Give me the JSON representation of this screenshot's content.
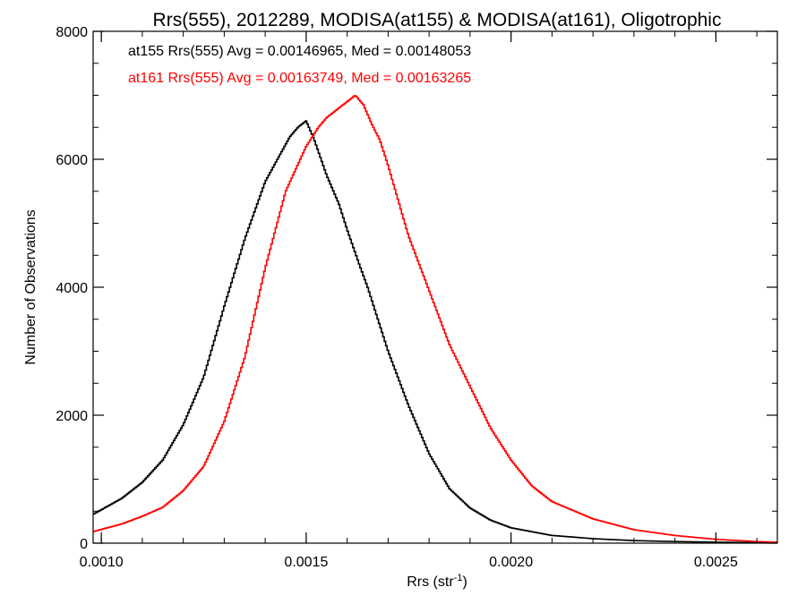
{
  "chart_data": {
    "type": "line",
    "title": "Rrs(555), 2012289, MODISA(at155) & MODISA(at161), Oligotrophic",
    "xlabel": "Rrs (str",
    "xlabel_sup": "-1",
    "xlabel_close": ")",
    "ylabel": "Number of Observations",
    "xlim": [
      0.00098,
      0.00265
    ],
    "ylim": [
      0,
      8000
    ],
    "xticks": [
      0.001,
      0.0015,
      0.002,
      0.0025
    ],
    "xtick_labels": [
      "0.0010",
      "0.0015",
      "0.0020",
      "0.0025"
    ],
    "yticks": [
      0,
      2000,
      4000,
      6000,
      8000
    ],
    "ytick_labels": [
      "0",
      "2000",
      "4000",
      "6000",
      "8000"
    ],
    "grid": false,
    "legend_position": "top-left",
    "series": [
      {
        "name": "at155",
        "color": "#000000",
        "stats_label": "at155 Rrs(555) Avg = 0.00146965, Med = 0.00148053",
        "x": [
          0.00098,
          0.00105,
          0.0011,
          0.00115,
          0.0012,
          0.00125,
          0.0013,
          0.00135,
          0.0014,
          0.00143,
          0.00146,
          0.00148,
          0.0015,
          0.00152,
          0.00155,
          0.00158,
          0.0016,
          0.00163,
          0.00165,
          0.0017,
          0.00175,
          0.0018,
          0.00185,
          0.0019,
          0.00195,
          0.002,
          0.0021,
          0.0022,
          0.0023,
          0.0024,
          0.0025,
          0.0026,
          0.00265
        ],
        "values": [
          450,
          700,
          950,
          1300,
          1850,
          2600,
          3700,
          4750,
          5650,
          6000,
          6350,
          6500,
          6600,
          6300,
          5750,
          5300,
          4900,
          4350,
          4000,
          3000,
          2150,
          1400,
          850,
          550,
          360,
          240,
          120,
          70,
          40,
          25,
          15,
          8,
          5
        ]
      },
      {
        "name": "at161",
        "color": "#ff0000",
        "stats_label": "at161 Rrs(555) Avg = 0.00163749, Med = 0.00163265",
        "x": [
          0.00098,
          0.00105,
          0.0011,
          0.00115,
          0.0012,
          0.00125,
          0.0013,
          0.00135,
          0.0014,
          0.00145,
          0.0015,
          0.00153,
          0.00155,
          0.00158,
          0.0016,
          0.00162,
          0.00164,
          0.00166,
          0.00168,
          0.0017,
          0.00175,
          0.0018,
          0.00185,
          0.0019,
          0.00195,
          0.002,
          0.00205,
          0.0021,
          0.0022,
          0.0023,
          0.0024,
          0.0025,
          0.0026,
          0.00265
        ],
        "values": [
          180,
          300,
          420,
          560,
          820,
          1200,
          1900,
          2900,
          4300,
          5500,
          6200,
          6500,
          6650,
          6800,
          6900,
          7000,
          6850,
          6550,
          6300,
          5900,
          4800,
          3950,
          3100,
          2450,
          1800,
          1300,
          900,
          650,
          380,
          210,
          120,
          60,
          25,
          15
        ]
      }
    ]
  }
}
